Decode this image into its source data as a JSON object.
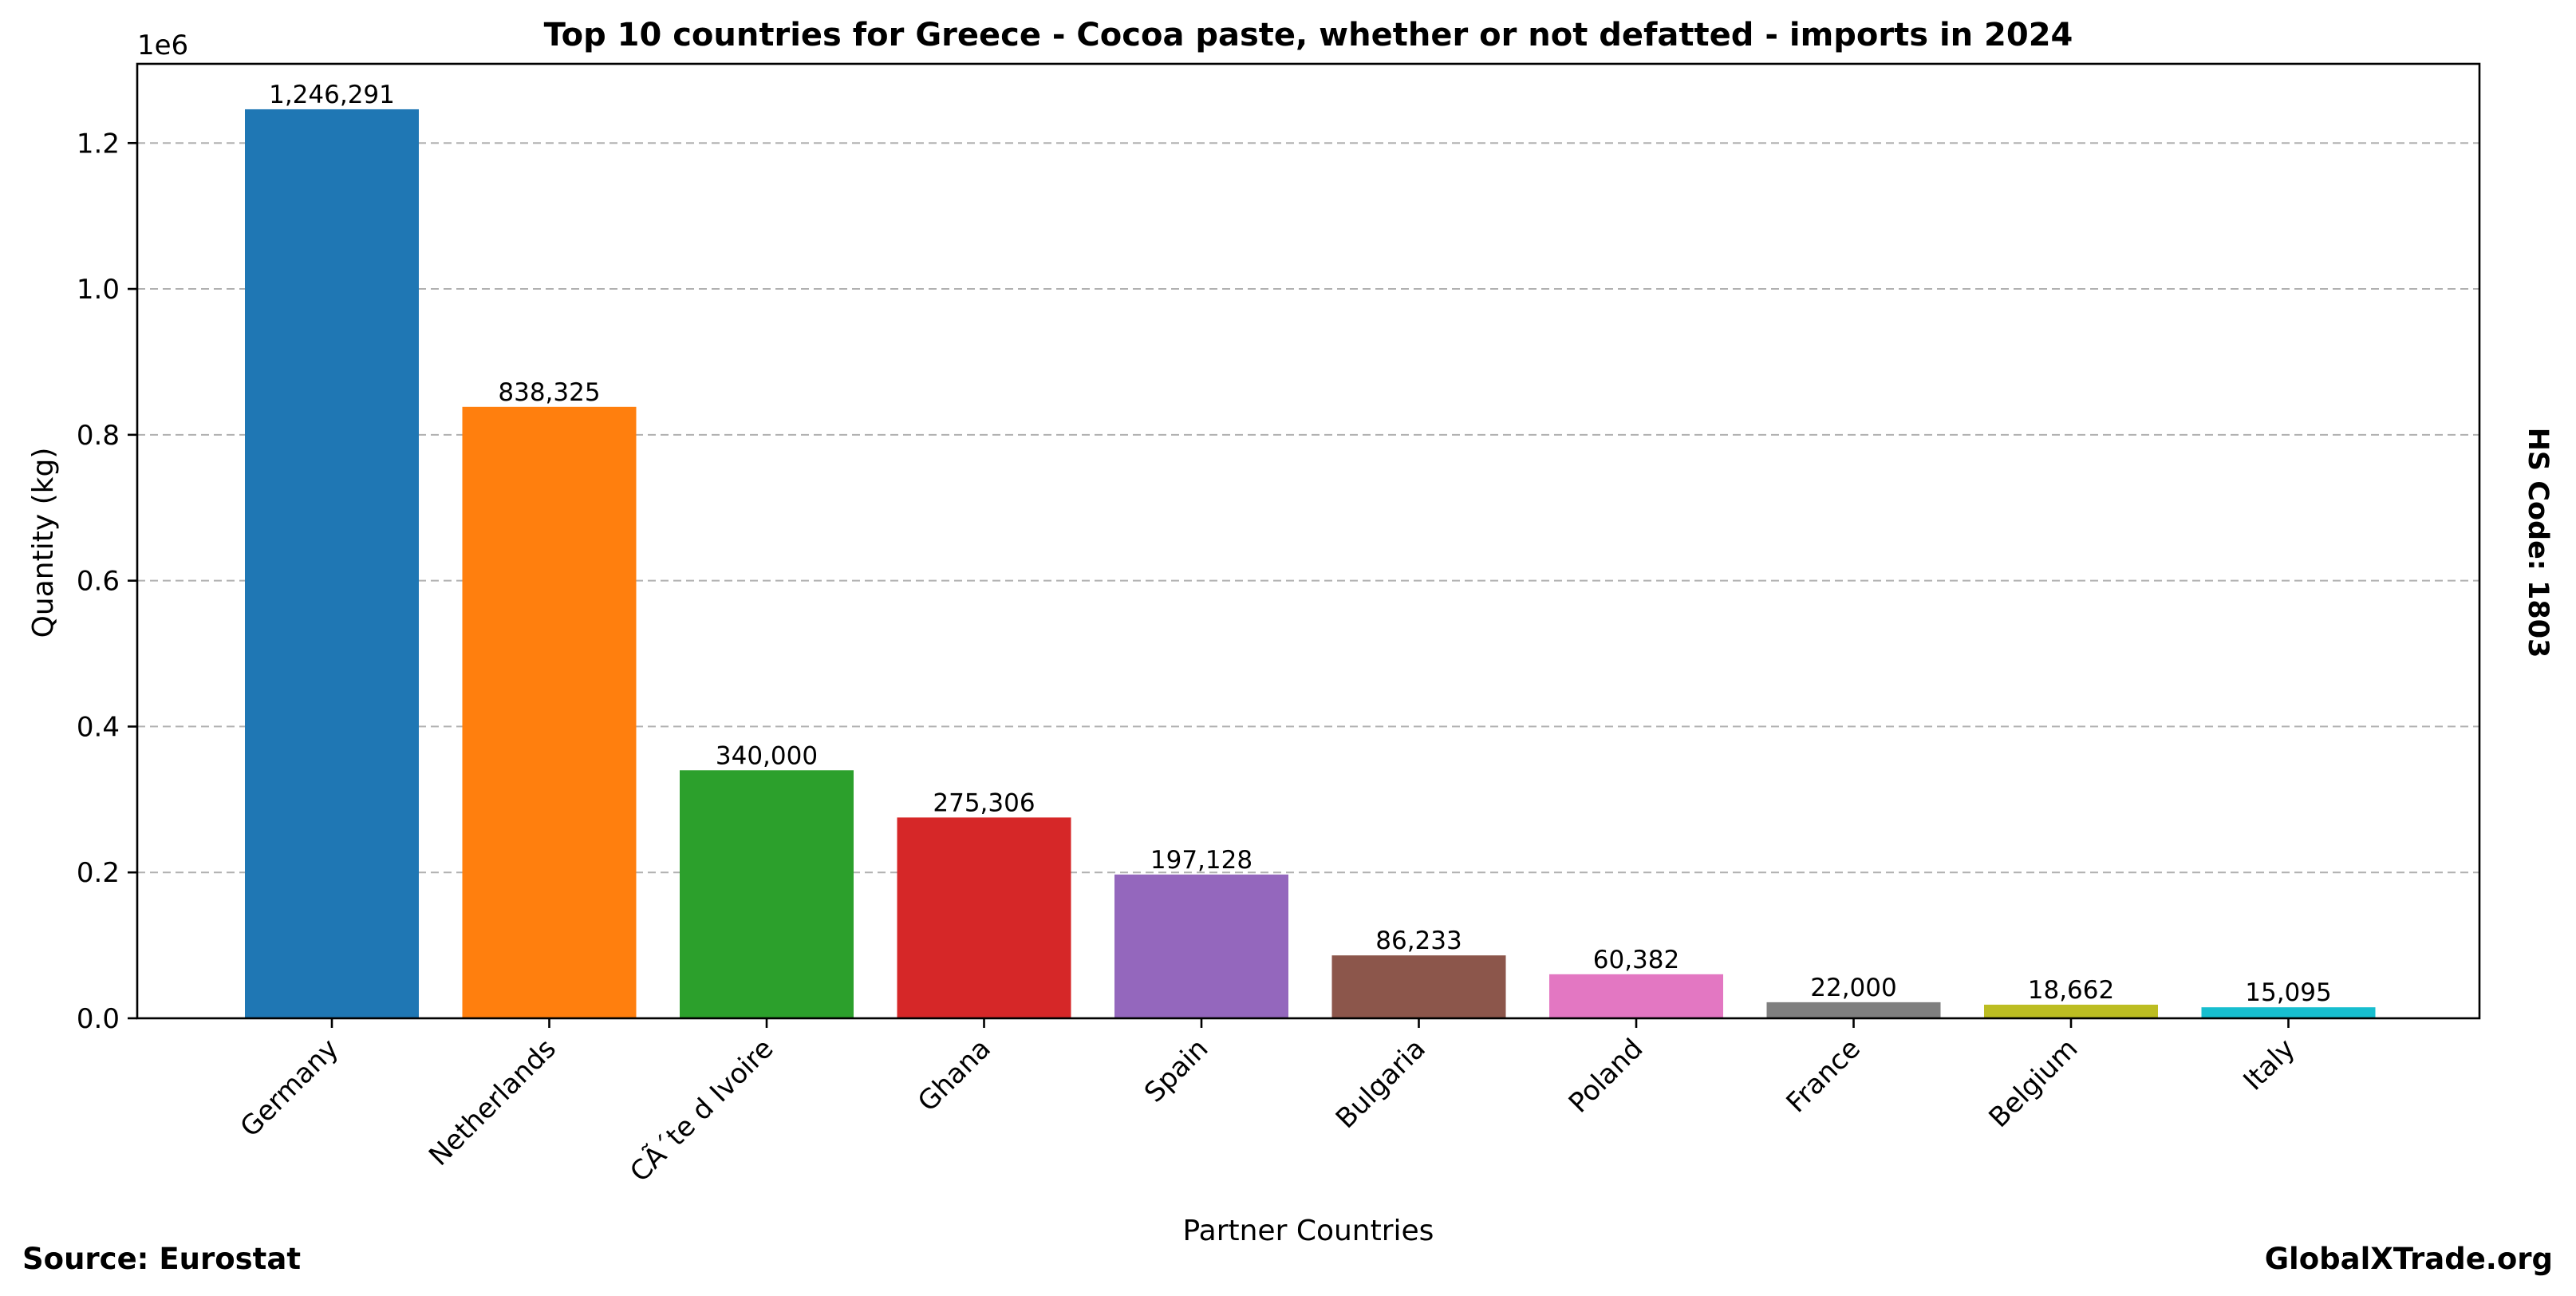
{
  "chart_data": {
    "type": "bar",
    "title": "Top 10 countries for Greece - Cocoa paste, whether or not defatted - imports in 2024",
    "xlabel": "Partner Countries",
    "ylabel": "Quantity (kg)",
    "y_offset_label": "1e6",
    "categories": [
      "Germany",
      "Netherlands",
      "CÃ´te d Ivoire",
      "Ghana",
      "Spain",
      "Bulgaria",
      "Poland",
      "France",
      "Belgium",
      "Italy"
    ],
    "values": [
      1246291,
      838325,
      340000,
      275306,
      197128,
      86233,
      60382,
      22000,
      18662,
      15095
    ],
    "value_labels": [
      "1,246,291",
      "838,325",
      "340,000",
      "275,306",
      "197,128",
      "86,233",
      "60,382",
      "22,000",
      "18,662",
      "15,095"
    ],
    "colors": [
      "#1f77b4",
      "#ff7f0e",
      "#2ca02c",
      "#d62728",
      "#9467bd",
      "#8c564b",
      "#e377c2",
      "#7f7f7f",
      "#bcbd22",
      "#17becf"
    ],
    "yticks": [
      0,
      0.2,
      0.4,
      0.6,
      0.8,
      1.0,
      1.2
    ],
    "ytick_labels": [
      "0.0",
      "0.2",
      "0.4",
      "0.6",
      "0.8",
      "1.0",
      "1.2"
    ],
    "ytick_scale": 1000000,
    "ylim": [
      0,
      1308605
    ],
    "grid": "y-dashed",
    "side_note": "HS Code: 1803",
    "source": "Source: Eurostat",
    "brand": "GlobalXTrade.org"
  }
}
